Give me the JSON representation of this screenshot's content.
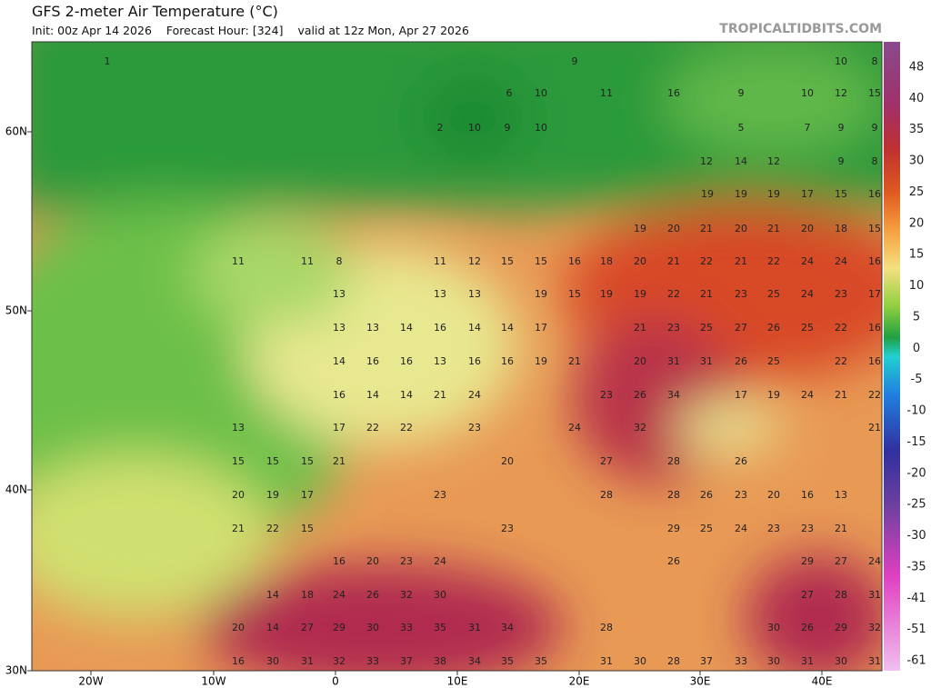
{
  "header": {
    "title": "GFS 2-meter Air Temperature (°C)",
    "init": "Init: 00z Apr 14 2026",
    "forecast_hour": "Forecast Hour: [324]",
    "valid": "valid at 12z Mon, Apr 27 2026",
    "brand": "TROPICALTIDBITS.COM"
  },
  "axes": {
    "lat_labels": [
      "60N",
      "50N",
      "40N",
      "30N"
    ],
    "lon_labels": [
      "20W",
      "10W",
      "0",
      "10E",
      "20E",
      "30E",
      "40E"
    ]
  },
  "colorbar": {
    "labels": [
      48,
      40,
      35,
      30,
      25,
      20,
      15,
      10,
      5,
      0,
      -5,
      -10,
      -15,
      -20,
      -25,
      -30,
      -35,
      -41,
      -51,
      -61
    ]
  },
  "map": {
    "rows": [
      [
        1,
        9,
        10,
        8
      ],
      [
        6,
        10,
        11,
        16,
        9,
        10,
        12,
        15
      ],
      [
        2,
        10,
        9,
        10,
        5,
        7,
        9,
        9
      ],
      [
        12,
        14,
        12,
        9,
        8
      ],
      [
        19,
        19,
        19,
        17,
        15,
        16
      ],
      [
        19,
        20,
        21,
        20,
        21,
        20,
        18,
        15
      ],
      [
        11,
        11,
        8,
        11,
        12,
        15,
        15,
        16,
        18,
        20,
        21,
        22,
        21,
        22,
        24,
        24,
        16
      ],
      [
        13,
        13,
        13,
        19,
        15,
        19,
        19,
        22,
        21,
        23,
        25,
        24,
        23,
        17
      ],
      [
        13,
        13,
        14,
        16,
        14,
        14,
        17,
        21,
        23,
        25,
        27,
        26,
        25,
        22,
        16
      ],
      [
        14,
        16,
        16,
        13,
        16,
        16,
        19,
        21,
        20,
        31,
        31,
        26,
        25,
        22,
        16
      ],
      [
        16,
        14,
        14,
        21,
        24,
        23,
        26,
        34,
        17,
        19,
        24,
        21,
        22
      ],
      [
        13,
        17,
        22,
        22,
        23,
        24,
        32,
        21
      ],
      [
        15,
        15,
        15,
        21,
        20,
        27,
        28,
        26
      ],
      [
        20,
        19,
        17,
        23,
        28,
        28,
        26,
        23,
        20,
        16,
        13
      ],
      [
        21,
        22,
        15,
        23,
        29,
        25,
        24,
        23,
        23,
        21
      ],
      [
        16,
        20,
        23,
        24,
        26,
        29,
        27,
        24
      ],
      [
        14,
        18,
        24,
        26,
        32,
        30,
        27,
        28,
        31
      ],
      [
        20,
        14,
        27,
        29,
        30,
        33,
        35,
        31,
        34,
        28,
        30,
        26,
        29,
        32
      ],
      [
        16,
        30,
        31,
        32,
        33,
        37,
        38,
        34,
        35,
        35,
        31,
        30,
        28,
        37,
        33,
        30,
        31,
        30,
        31
      ]
    ]
  }
}
